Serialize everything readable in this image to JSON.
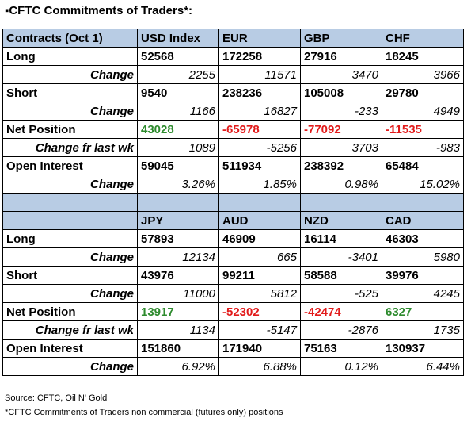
{
  "title": "CFTC Commitments of Traders*:",
  "colors": {
    "header_bg": "#b8cce4",
    "positive": "#2e8b2e",
    "negative": "#e21b1b"
  },
  "table1": {
    "header": [
      "Contracts (Oct 1)",
      "USD Index",
      "EUR",
      "GBP",
      "CHF"
    ],
    "long": {
      "label": "Long",
      "values": [
        "52568",
        "172258",
        "27916",
        "18245"
      ]
    },
    "long_change": {
      "label": "Change",
      "values": [
        "2255",
        "11571",
        "3470",
        "3966"
      ]
    },
    "short": {
      "label": "Short",
      "values": [
        "9540",
        "238236",
        "105008",
        "29780"
      ]
    },
    "short_change": {
      "label": "Change",
      "values": [
        "1166",
        "16827",
        "-233",
        "4949"
      ]
    },
    "net": {
      "label": "Net Position",
      "values": [
        "43028",
        "-65978",
        "-77092",
        "-11535"
      ]
    },
    "net_change": {
      "label": "Change fr last wk",
      "values": [
        "1089",
        "-5256",
        "3703",
        "-983"
      ]
    },
    "oi": {
      "label": "Open Interest",
      "values": [
        "59045",
        "511934",
        "238392",
        "65484"
      ]
    },
    "oi_change": {
      "label": "Change",
      "values": [
        "3.26%",
        "1.85%",
        "0.98%",
        "15.02%"
      ]
    }
  },
  "table2": {
    "header": [
      "JPY",
      "AUD",
      "NZD",
      "CAD"
    ],
    "long": {
      "label": "Long",
      "values": [
        "57893",
        "46909",
        "16114",
        "46303"
      ]
    },
    "long_change": {
      "label": "Change",
      "values": [
        "12134",
        "665",
        "-3401",
        "5980"
      ]
    },
    "short": {
      "label": "Short",
      "values": [
        "43976",
        "99211",
        "58588",
        "39976"
      ]
    },
    "short_change": {
      "label": "Change",
      "values": [
        "11000",
        "5812",
        "-525",
        "4245"
      ]
    },
    "net": {
      "label": "Net Position",
      "values": [
        "13917",
        "-52302",
        "-42474",
        "6327"
      ]
    },
    "net_change": {
      "label": "Change fr last wk",
      "values": [
        "1134",
        "-5147",
        "-2876",
        "1735"
      ]
    },
    "oi": {
      "label": "Open Interest",
      "values": [
        "151860",
        "171940",
        "75163",
        "130937"
      ]
    },
    "oi_change": {
      "label": "Change",
      "values": [
        "6.92%",
        "6.88%",
        "0.12%",
        "6.44%"
      ]
    }
  },
  "footer": {
    "source": "Source: CFTC, Oil N' Gold",
    "note": "*CFTC Commitments of Traders non commercial (futures only) positions"
  }
}
